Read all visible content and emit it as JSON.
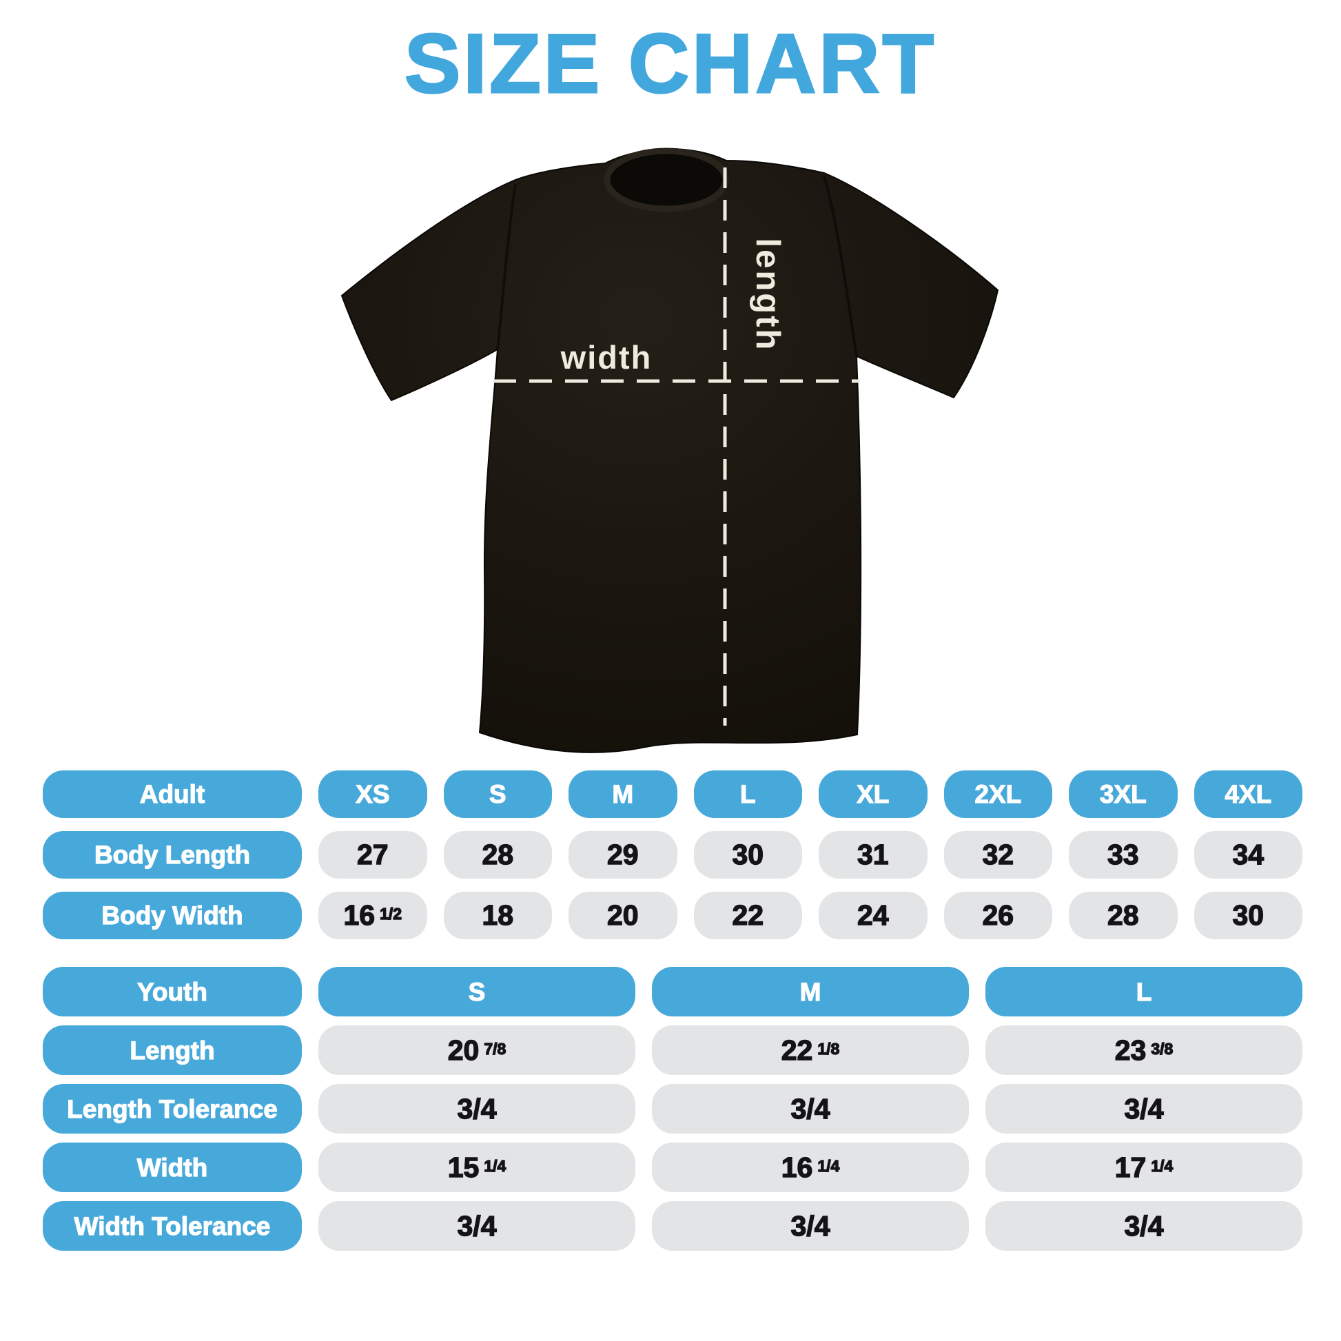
{
  "title": "SIZE CHART",
  "shirt_diagram": {
    "width_label": "width",
    "length_label": "length"
  },
  "adult_table": {
    "header_label": "Adult",
    "sizes": [
      "XS",
      "S",
      "M",
      "L",
      "XL",
      "2XL",
      "3XL",
      "4XL"
    ],
    "rows": [
      {
        "label": "Body Length",
        "values": [
          {
            "main": "27"
          },
          {
            "main": "28"
          },
          {
            "main": "29"
          },
          {
            "main": "30"
          },
          {
            "main": "31"
          },
          {
            "main": "32"
          },
          {
            "main": "33"
          },
          {
            "main": "34"
          }
        ]
      },
      {
        "label": "Body Width",
        "values": [
          {
            "main": "16",
            "frac": "1/2"
          },
          {
            "main": "18"
          },
          {
            "main": "20"
          },
          {
            "main": "22"
          },
          {
            "main": "24"
          },
          {
            "main": "26"
          },
          {
            "main": "28"
          },
          {
            "main": "30"
          }
        ]
      }
    ]
  },
  "youth_table": {
    "header_label": "Youth",
    "sizes": [
      "S",
      "M",
      "L"
    ],
    "rows": [
      {
        "label": "Length",
        "values": [
          {
            "main": "20",
            "frac": "7/8"
          },
          {
            "main": "22",
            "frac": "1/8"
          },
          {
            "main": "23",
            "frac": "3/8"
          }
        ]
      },
      {
        "label": "Length Tolerance",
        "values": [
          {
            "main": "3/4"
          },
          {
            "main": "3/4"
          },
          {
            "main": "3/4"
          }
        ]
      },
      {
        "label": "Width",
        "values": [
          {
            "main": "15",
            "frac": "1/4"
          },
          {
            "main": "16",
            "frac": "1/4"
          },
          {
            "main": "17",
            "frac": "1/4"
          }
        ]
      },
      {
        "label": "Width Tolerance",
        "values": [
          {
            "main": "3/4"
          },
          {
            "main": "3/4"
          },
          {
            "main": "3/4"
          }
        ]
      }
    ]
  },
  "colors": {
    "accent_blue": "#47a8da",
    "title_blue": "#42a7dc",
    "pill_gray": "#e3e4e5",
    "pill_text_dark": "#141416",
    "shirt_black": "#161209",
    "measure_line_cream": "#f1eadf"
  },
  "chart_data": [
    {
      "type": "table",
      "title": "Adult sizes",
      "columns": [
        "Adult",
        "XS",
        "S",
        "M",
        "L",
        "XL",
        "2XL",
        "3XL",
        "4XL"
      ],
      "rows": [
        [
          "Body Length",
          "27",
          "28",
          "29",
          "30",
          "31",
          "32",
          "33",
          "34"
        ],
        [
          "Body Width",
          "16 1/2",
          "18",
          "20",
          "22",
          "24",
          "26",
          "28",
          "30"
        ]
      ]
    },
    {
      "type": "table",
      "title": "Youth sizes",
      "columns": [
        "Youth",
        "S",
        "M",
        "L"
      ],
      "rows": [
        [
          "Length",
          "20 7/8",
          "22 1/8",
          "23 3/8"
        ],
        [
          "Length Tolerance",
          "3/4",
          "3/4",
          "3/4"
        ],
        [
          "Width",
          "15 1/4",
          "16 1/4",
          "17 1/4"
        ],
        [
          "Width Tolerance",
          "3/4",
          "3/4",
          "3/4"
        ]
      ]
    }
  ]
}
